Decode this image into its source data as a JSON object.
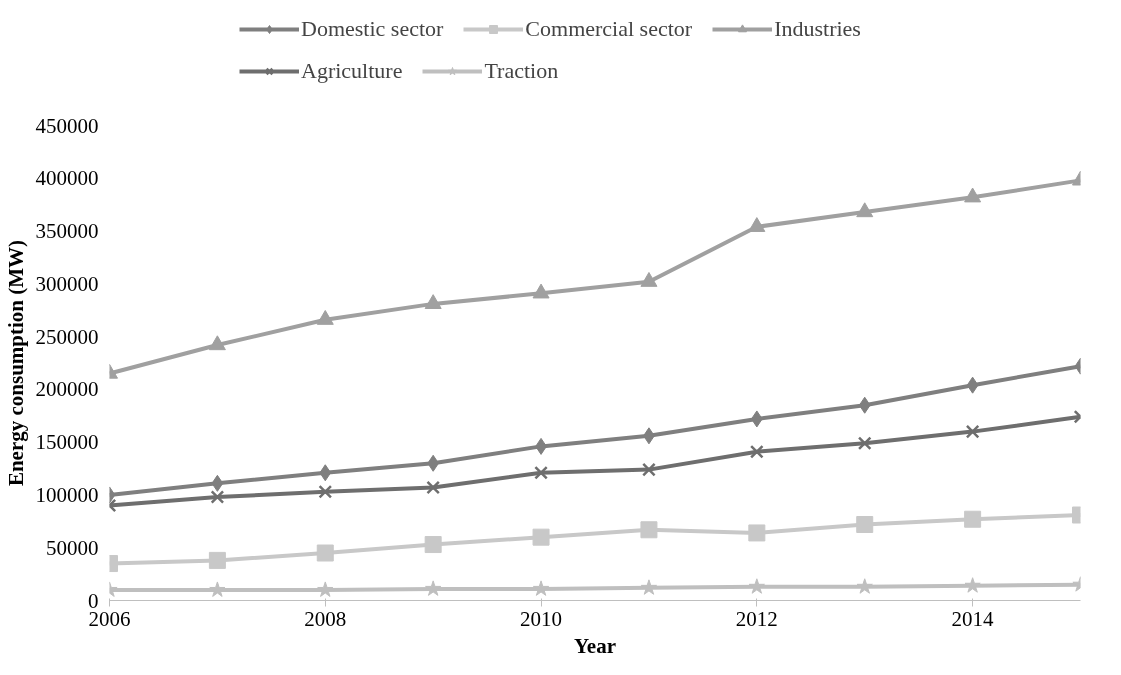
{
  "chart_data": {
    "type": "line",
    "xlabel": "Year",
    "ylabel": "Energy consumption (MW)",
    "x": [
      2006,
      2007,
      2008,
      2009,
      2010,
      2011,
      2012,
      2013,
      2014,
      2015
    ],
    "series": [
      {
        "name": "Domestic sector",
        "color": "#7f7f7f",
        "marker": "diamond",
        "values": [
          100000,
          111000,
          121000,
          130000,
          146000,
          156000,
          172000,
          185000,
          204000,
          222000
        ]
      },
      {
        "name": "Commercial sector",
        "color": "#c8c8c8",
        "marker": "square",
        "values": [
          35000,
          38000,
          45000,
          53000,
          60000,
          67000,
          64000,
          72000,
          77000,
          81000
        ]
      },
      {
        "name": "Industries",
        "color": "#a0a0a0",
        "marker": "triangle",
        "values": [
          215000,
          242000,
          266000,
          281000,
          291000,
          302000,
          354000,
          368000,
          382000,
          398000
        ]
      },
      {
        "name": "Agriculture",
        "color": "#6e6e6e",
        "marker": "cross",
        "values": [
          90000,
          98000,
          103000,
          107000,
          121000,
          124000,
          141000,
          149000,
          160000,
          174000
        ]
      },
      {
        "name": "Traction",
        "color": "#bfbfbf",
        "marker": "star",
        "values": [
          10000,
          10000,
          10000,
          11000,
          11000,
          12000,
          13000,
          13000,
          14000,
          15000
        ]
      }
    ],
    "xlim": [
      2006,
      2015
    ],
    "xticks": [
      2006,
      2008,
      2010,
      2012,
      2014
    ],
    "ylim": [
      0,
      450000
    ],
    "yticks": [
      0,
      50000,
      100000,
      150000,
      200000,
      250000,
      300000,
      350000,
      400000,
      450000
    ],
    "grid": false,
    "legend": "top",
    "line_style": "solid"
  }
}
